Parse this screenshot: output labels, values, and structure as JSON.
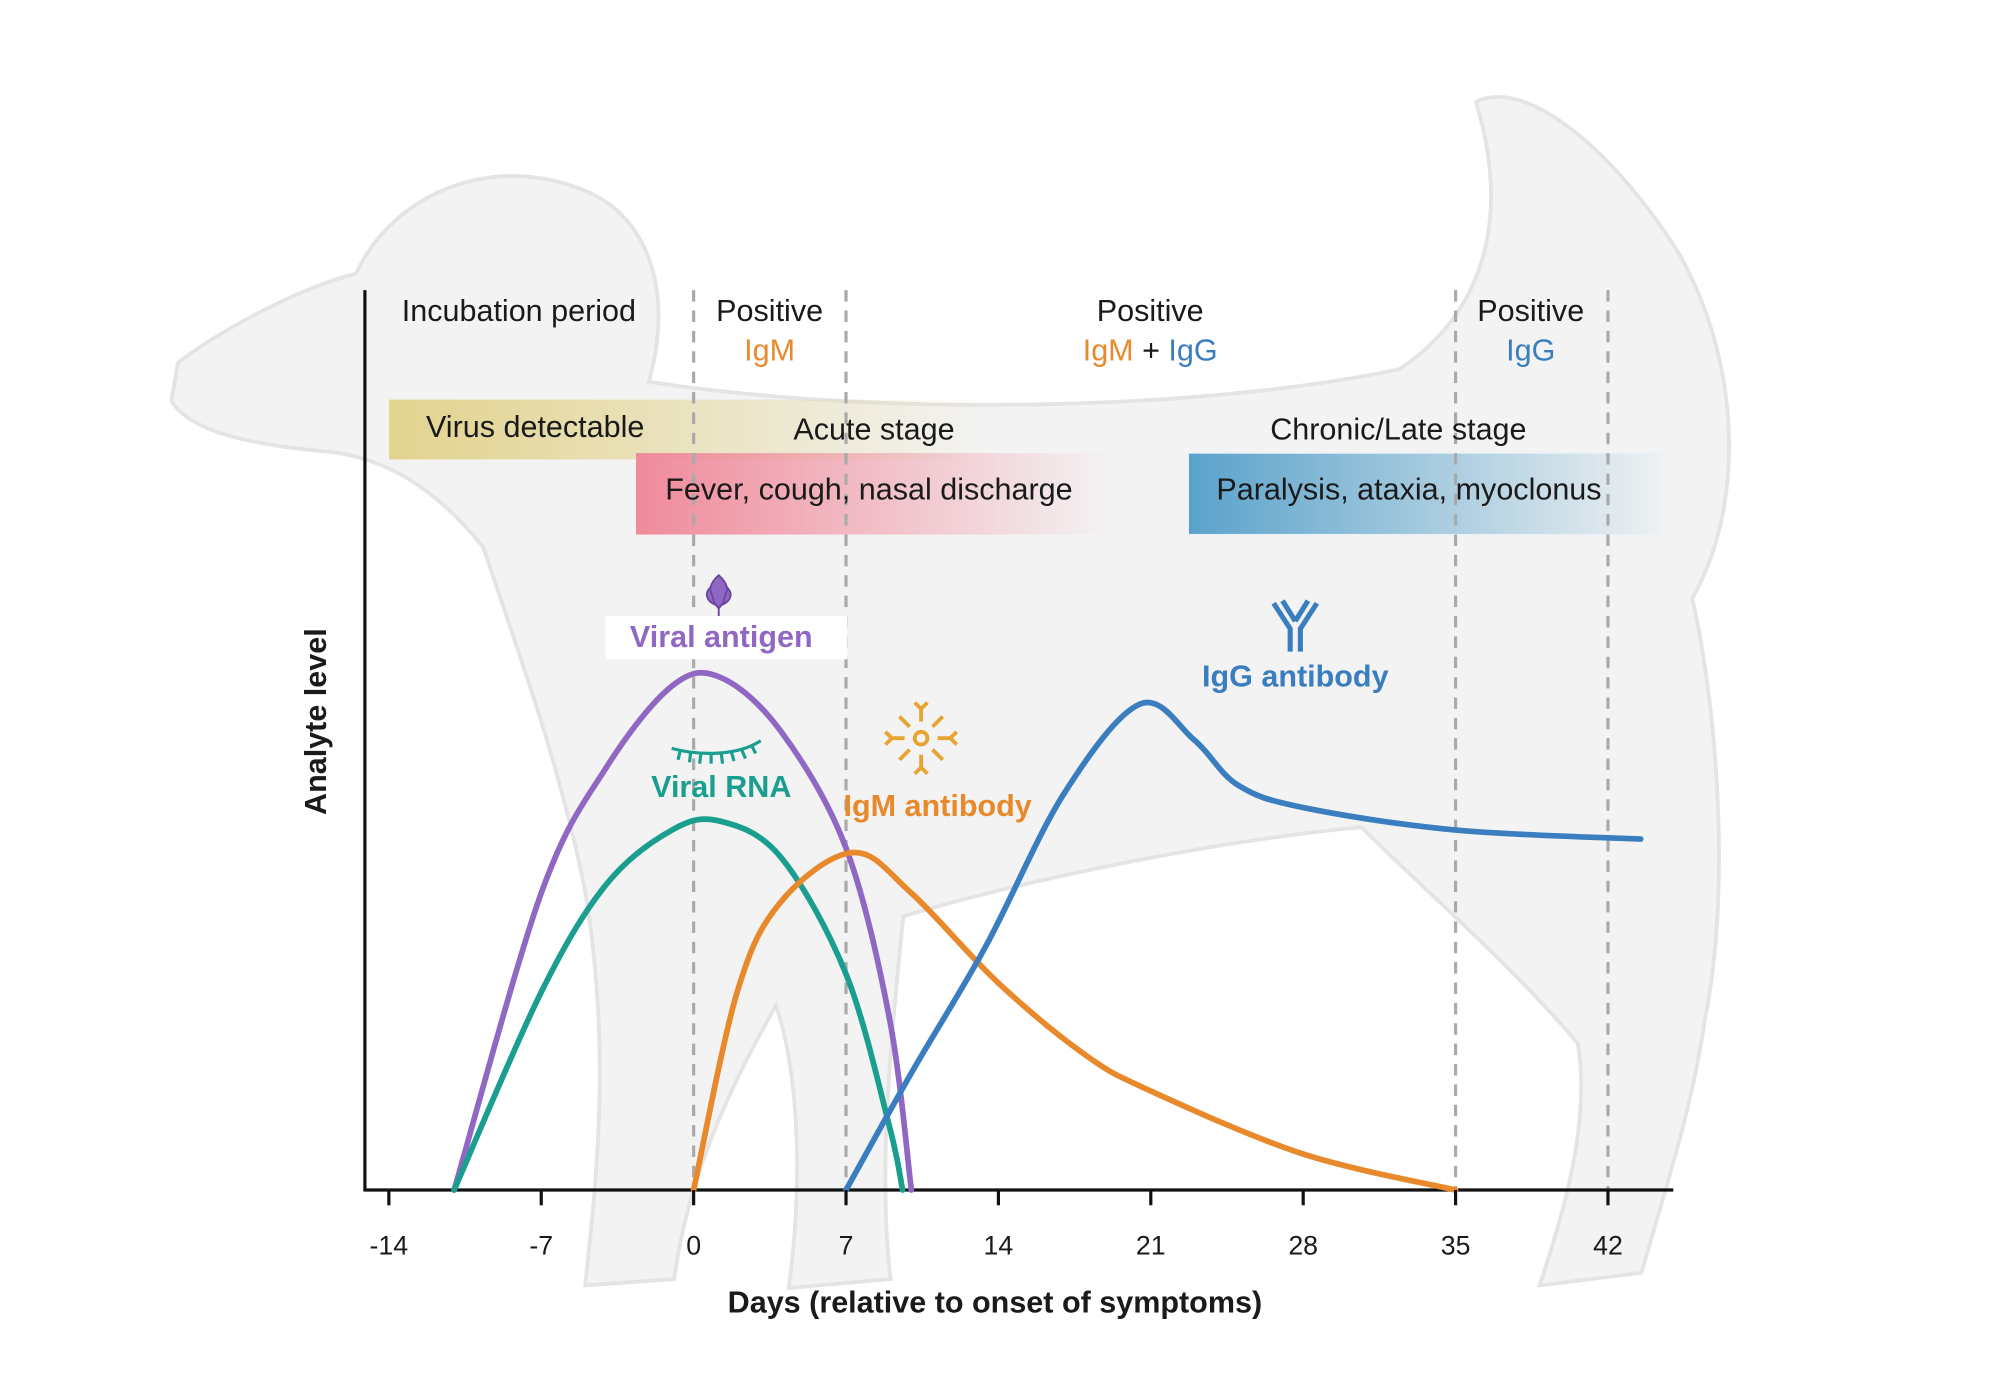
{
  "chart_data": {
    "type": "line",
    "x_label": "Days (relative to onset of symptoms)",
    "y_label": "Analyte level",
    "xlim": [
      -15.1,
      45
    ],
    "ylim": [
      0,
      100
    ],
    "xticks": [
      -14,
      -7,
      0,
      7,
      14,
      21,
      28,
      35,
      42
    ],
    "phase_lines": [
      0,
      7,
      35,
      42
    ],
    "phases": [
      {
        "title": "Incubation period"
      },
      {
        "title": "Positive",
        "tests": [
          "IgM"
        ]
      },
      {
        "title": "Positive",
        "tests": [
          "IgM",
          "+",
          "IgG"
        ]
      },
      {
        "title": "Positive",
        "tests": [
          "IgG"
        ]
      }
    ],
    "stages": [
      {
        "name": "Virus detectable"
      },
      {
        "name": "Acute stage",
        "signs": "Fever, cough, nasal discharge"
      },
      {
        "name": "Chronic/Late stage",
        "signs": "Paralysis, ataxia, myoclonus"
      }
    ],
    "series": [
      {
        "name": "Viral antigen",
        "color": "#9068c4",
        "x": [
          -11,
          -7,
          -4,
          -1,
          1.2,
          4,
          7,
          9,
          10
        ],
        "values": [
          0,
          33,
          47,
          56,
          57,
          51,
          38,
          19,
          0
        ]
      },
      {
        "name": "Viral RNA",
        "color": "#1a9e8f",
        "x": [
          -11,
          -7,
          -4,
          -1,
          1.2,
          4,
          7,
          9,
          9.6
        ],
        "values": [
          0,
          22,
          34,
          40,
          41,
          37,
          24,
          7,
          0
        ]
      },
      {
        "name": "IgM antibody",
        "color": "#e8892c",
        "x": [
          0,
          2,
          4,
          7.3,
          10,
          14,
          18,
          21,
          28,
          35
        ],
        "values": [
          0,
          22,
          32,
          37.5,
          33,
          23,
          15,
          11,
          4,
          0
        ]
      },
      {
        "name": "IgG antibody",
        "color": "#3a7ec0",
        "x": [
          7,
          10,
          13.4,
          17,
          20.5,
          23,
          25,
          28,
          35,
          43.5
        ],
        "values": [
          0,
          13,
          27,
          44,
          54,
          50,
          45,
          42.5,
          40,
          39
        ]
      }
    ]
  }
}
